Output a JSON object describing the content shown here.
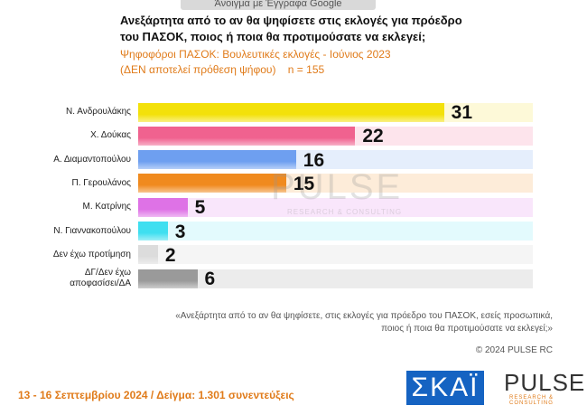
{
  "button": "Άνοιγμα με Έγγραφα Google",
  "chart_data": {
    "type": "bar",
    "orientation": "horizontal",
    "title": "Ανεξάρτητα από το αν θα ψηφίσετε στις εκλογές για πρόεδρο\nτου ΠΑΣΟΚ, ποιος ή ποια θα προτιμούσατε να εκλεγεί;",
    "subtitle": "Ψηφοφόροι ΠΑΣΟΚ: Βουλευτικές εκλογές - Ιούνιος 2023\n(ΔΕΝ αποτελεί πρόθεση ψήφου)    n = 155",
    "categories": [
      "Ν. Ανδρουλάκης",
      "Χ. Δούκας",
      "Α. Διαμαντοπούλου",
      "Π. Γερουλάνος",
      "Μ. Κατρίνης",
      "Ν. Γιαννακοπούλου",
      "Δεν έχω προτίμηση",
      "ΔΓ/Δεν έχω\nαποφασίσει/ΔΑ"
    ],
    "values": [
      31,
      22,
      16,
      15,
      5,
      3,
      2,
      6
    ],
    "colors": [
      "#f3e10a",
      "#f0628f",
      "#6e9ff0",
      "#f08a1e",
      "#de72e6",
      "#3fdff0",
      "#dcdcdc",
      "#9a9a9a"
    ],
    "track_colors": [
      "#fdf9d8",
      "#fde4ec",
      "#e5eefc",
      "#fdecd9",
      "#f9e6fb",
      "#e3fafd",
      "#f5f5f5",
      "#ececec"
    ],
    "xlim": [
      0,
      40
    ]
  },
  "watermark": "PULSE",
  "watermark_sub": "RESEARCH & CONSULTING",
  "note": "«Ανεξάρτητα από το αν θα ψηφίσετε, στις εκλογές για πρόεδρο του ΠΑΣΟΚ, εσείς προσωπικά,\nποιος ή ποια θα προτιμούσατε να εκλεγεί;»",
  "copyright": "© 2024 PULSE RC",
  "footer": "13 - 16 Σεπτεμβρίου 2024  /  Δείγμα:  1.301 συνεντεύξεις",
  "logos": {
    "skai": "ΣΚΑΪ",
    "pulse": "PULSE",
    "pulse_sub": "RESEARCH & CONSULTING"
  }
}
